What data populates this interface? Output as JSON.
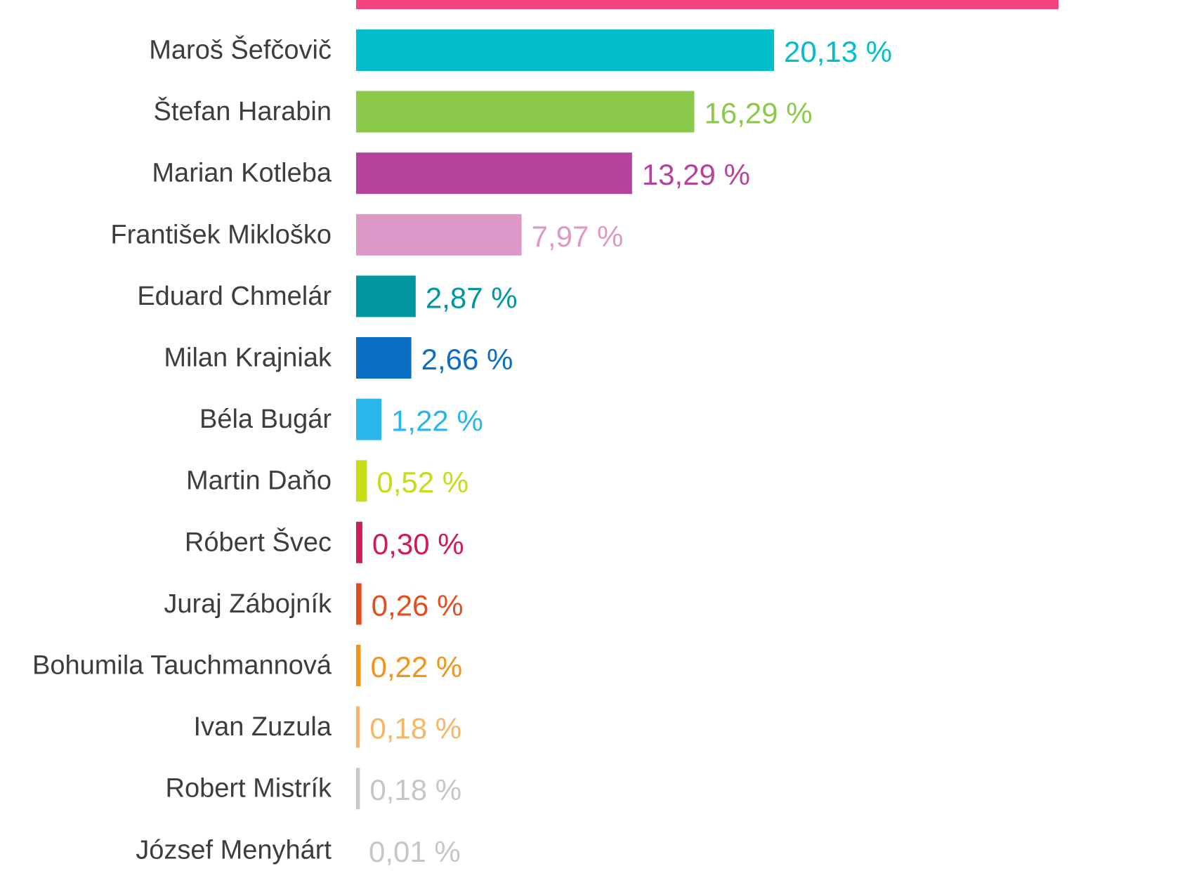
{
  "chart_data": {
    "type": "bar",
    "orientation": "horizontal",
    "title": "",
    "xlabel": "",
    "ylabel": "",
    "grid": false,
    "legend": "none",
    "xlim": [
      0,
      20.13
    ],
    "value_suffix": " %",
    "categories": [
      "Maroš Šefčovič",
      "Štefan Harabin",
      "Marian Kotleba",
      "František Mikloško",
      "Eduard Chmelár",
      "Milan Krajniak",
      "Béla Bugár",
      "Martin Daňo",
      "Róbert Švec",
      "Juraj Zábojník",
      "Bohumila Tauchmannová",
      "Ivan Zuzula",
      "Robert Mistrík",
      "József Menyhárt"
    ],
    "values": [
      20.13,
      16.29,
      13.29,
      7.97,
      2.87,
      2.66,
      1.22,
      0.52,
      0.3,
      0.26,
      0.22,
      0.18,
      0.18,
      0.01
    ],
    "value_labels": [
      "20,13 %",
      "16,29 %",
      "13,29 %",
      "7,97 %",
      "2,87 %",
      "2,66 %",
      "1,22 %",
      "0,52 %",
      "0,30 %",
      "0,26 %",
      "0,22 %",
      "0,18 %",
      "0,18 %",
      "0,01 %"
    ],
    "colors": [
      "#00bfcb",
      "#8bc94a",
      "#b7429e",
      "#de98c8",
      "#0096a0",
      "#0a6fc2",
      "#29b6ec",
      "#c6dc14",
      "#cf1a5b",
      "#e24f1f",
      "#f39419",
      "#f7b663",
      "#c6c6c6",
      "#c6c6c6"
    ],
    "top_bar": {
      "color": "#f4427d"
    }
  }
}
